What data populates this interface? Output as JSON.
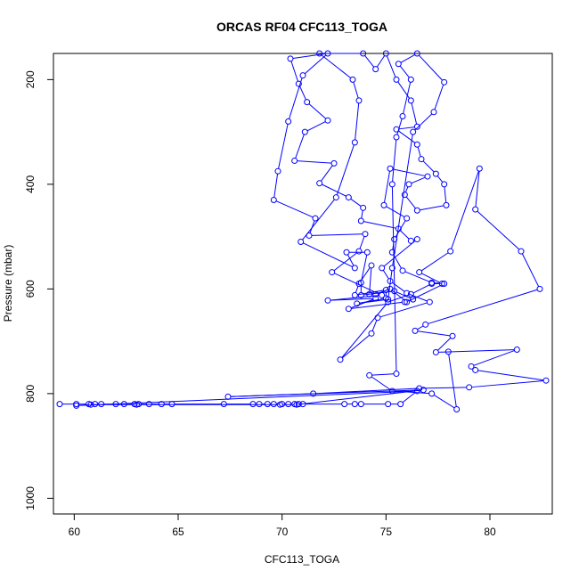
{
  "chart_data": {
    "type": "line",
    "title": "ORCAS RF04 CFC113_TOGA",
    "xlabel": "CFC113_TOGA",
    "ylabel": "Pressure (mbar)",
    "xlim": [
      59,
      83
    ],
    "ylim": [
      1030,
      150
    ],
    "y_reversed": true,
    "x_ticks": [
      60,
      65,
      70,
      75,
      80
    ],
    "y_ticks": [
      200,
      400,
      600,
      800,
      1000
    ],
    "grid": false,
    "legend": "none",
    "series": [
      {
        "color": "#0000ff",
        "marker": "open-circle",
        "points": [
          [
            59.3,
            820
          ],
          [
            60.1,
            820
          ],
          [
            60.7,
            820
          ],
          [
            61.0,
            820
          ],
          [
            61.3,
            820
          ],
          [
            62.0,
            820
          ],
          [
            62.4,
            820
          ],
          [
            62.9,
            820
          ],
          [
            63.1,
            820
          ],
          [
            63.6,
            820
          ],
          [
            64.2,
            820
          ],
          [
            64.7,
            820
          ],
          [
            67.2,
            820
          ],
          [
            68.6,
            820
          ],
          [
            68.9,
            820
          ],
          [
            69.3,
            820
          ],
          [
            69.6,
            820
          ],
          [
            70.0,
            820
          ],
          [
            70.3,
            820
          ],
          [
            70.6,
            820
          ],
          [
            70.8,
            820
          ],
          [
            71.0,
            820
          ],
          [
            73.0,
            820
          ],
          [
            73.5,
            820
          ],
          [
            73.8,
            820
          ],
          [
            75.1,
            820
          ],
          [
            75.7,
            820
          ],
          [
            76.5,
            795
          ],
          [
            60.1,
            823
          ],
          [
            60.8,
            821
          ],
          [
            63.0,
            821
          ],
          [
            69.9,
            821
          ],
          [
            70.7,
            821
          ],
          [
            76.8,
            793
          ],
          [
            67.4,
            806
          ],
          [
            71.5,
            800
          ],
          [
            76.6,
            790
          ],
          [
            79.0,
            788
          ],
          [
            82.7,
            775
          ],
          [
            79.3,
            755
          ],
          [
            79.1,
            748
          ],
          [
            81.3,
            716
          ],
          [
            77.4,
            721
          ],
          [
            78.2,
            690
          ],
          [
            76.4,
            680
          ],
          [
            76.9,
            668
          ],
          [
            82.4,
            600
          ],
          [
            81.5,
            528
          ],
          [
            79.3,
            448
          ],
          [
            79.5,
            370
          ],
          [
            78.1,
            528
          ],
          [
            76.6,
            568
          ],
          [
            77.7,
            590
          ],
          [
            77.2,
            590
          ],
          [
            76.2,
            610
          ],
          [
            75.1,
            625
          ],
          [
            72.8,
            735
          ],
          [
            74.3,
            685
          ],
          [
            74.6,
            655
          ],
          [
            77.1,
            625
          ],
          [
            76.0,
            608
          ],
          [
            75.2,
            585
          ],
          [
            74.8,
            560
          ],
          [
            76.5,
            505
          ],
          [
            76.2,
            508
          ],
          [
            75.6,
            485
          ],
          [
            73.8,
            470
          ],
          [
            73.9,
            445
          ],
          [
            73.2,
            425
          ],
          [
            71.8,
            398
          ],
          [
            72.5,
            360
          ],
          [
            70.6,
            355
          ],
          [
            71.1,
            300
          ],
          [
            72.2,
            278
          ],
          [
            71.2,
            243
          ],
          [
            70.8,
            208
          ],
          [
            70.4,
            160
          ],
          [
            72.2,
            150
          ],
          [
            71.0,
            192
          ],
          [
            70.3,
            280
          ],
          [
            69.8,
            375
          ],
          [
            69.6,
            430
          ],
          [
            71.6,
            465
          ],
          [
            71.3,
            498
          ],
          [
            74.0,
            495
          ],
          [
            73.7,
            528
          ],
          [
            72.4,
            568
          ],
          [
            74.8,
            612
          ],
          [
            72.2,
            622
          ],
          [
            74.5,
            618
          ],
          [
            73.2,
            638
          ],
          [
            75.9,
            625
          ],
          [
            76.3,
            620
          ],
          [
            75.4,
            604
          ],
          [
            73.8,
            612
          ],
          [
            73.8,
            588
          ],
          [
            74.1,
            530
          ],
          [
            73.1,
            530
          ],
          [
            73.5,
            560
          ],
          [
            70.9,
            510
          ],
          [
            72.6,
            425
          ],
          [
            73.5,
            320
          ],
          [
            73.7,
            240
          ],
          [
            73.4,
            200
          ],
          [
            71.8,
            150
          ],
          [
            73.9,
            150
          ],
          [
            74.5,
            180
          ],
          [
            75.0,
            150
          ],
          [
            75.5,
            200
          ],
          [
            76.2,
            240
          ],
          [
            76.5,
            290
          ],
          [
            75.5,
            295
          ],
          [
            76.5,
            324
          ],
          [
            76.7,
            352
          ],
          [
            77.4,
            380
          ],
          [
            77.8,
            400
          ],
          [
            77.9,
            440
          ],
          [
            76.5,
            450
          ],
          [
            75.9,
            420
          ],
          [
            76.1,
            400
          ],
          [
            77.0,
            385
          ],
          [
            75.2,
            370
          ],
          [
            74.9,
            440
          ],
          [
            76.0,
            465
          ],
          [
            75.4,
            505
          ],
          [
            75.3,
            530
          ],
          [
            75.8,
            565
          ],
          [
            77.2,
            588
          ],
          [
            77.8,
            590
          ],
          [
            76.0,
            625
          ],
          [
            75.2,
            600
          ],
          [
            74.5,
            610
          ],
          [
            74.2,
            610
          ],
          [
            74.3,
            555
          ],
          [
            73.7,
            590
          ],
          [
            73.5,
            612
          ],
          [
            75.0,
            602
          ],
          [
            75.0,
            618
          ],
          [
            73.6,
            628
          ],
          [
            75.1,
            620
          ],
          [
            75.3,
            560
          ],
          [
            76.3,
            300
          ],
          [
            77.3,
            262
          ],
          [
            77.8,
            205
          ],
          [
            76.5,
            150
          ],
          [
            75.6,
            170
          ],
          [
            76.2,
            200
          ],
          [
            75.8,
            270
          ],
          [
            75.5,
            310
          ],
          [
            75.3,
            400
          ],
          [
            75.5,
            762
          ],
          [
            74.2,
            765
          ],
          [
            75.3,
            795
          ],
          [
            77.2,
            800
          ],
          [
            78.4,
            830
          ],
          [
            78.0,
            720
          ]
        ]
      }
    ]
  }
}
